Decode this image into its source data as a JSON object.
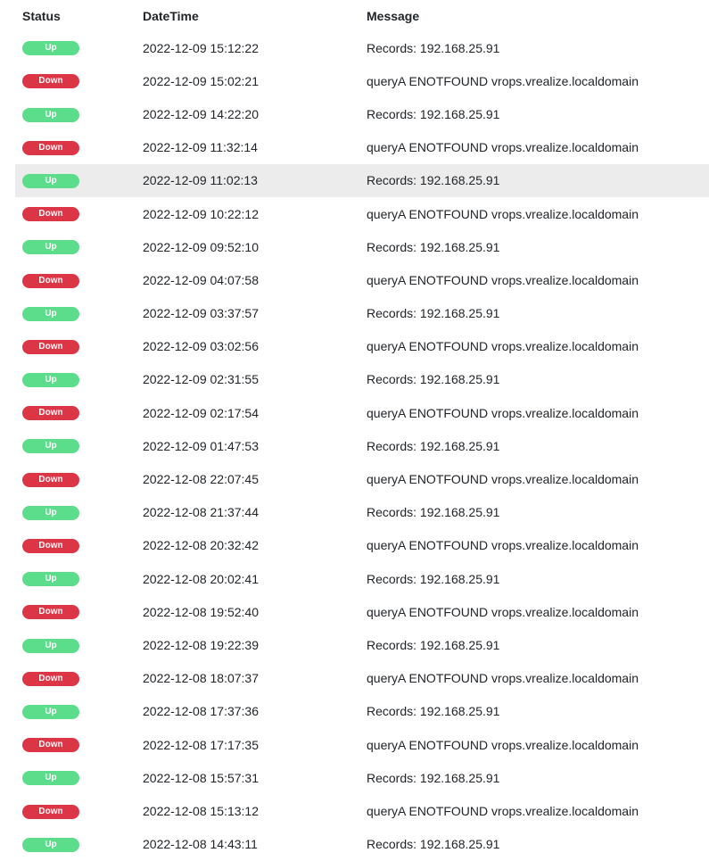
{
  "headers": {
    "status": "Status",
    "datetime": "DateTime",
    "message": "Message"
  },
  "colors": {
    "up": "#5cdd8b",
    "down": "#dc3545"
  },
  "highlighted_row": 4,
  "rows": [
    {
      "status": "Up",
      "datetime": "2022-12-09 15:12:22",
      "message": "Records: 192.168.25.91"
    },
    {
      "status": "Down",
      "datetime": "2022-12-09 15:02:21",
      "message": "queryA ENOTFOUND vrops.vrealize.localdomain"
    },
    {
      "status": "Up",
      "datetime": "2022-12-09 14:22:20",
      "message": "Records: 192.168.25.91"
    },
    {
      "status": "Down",
      "datetime": "2022-12-09 11:32:14",
      "message": "queryA ENOTFOUND vrops.vrealize.localdomain"
    },
    {
      "status": "Up",
      "datetime": "2022-12-09 11:02:13",
      "message": "Records: 192.168.25.91"
    },
    {
      "status": "Down",
      "datetime": "2022-12-09 10:22:12",
      "message": "queryA ENOTFOUND vrops.vrealize.localdomain"
    },
    {
      "status": "Up",
      "datetime": "2022-12-09 09:52:10",
      "message": "Records: 192.168.25.91"
    },
    {
      "status": "Down",
      "datetime": "2022-12-09 04:07:58",
      "message": "queryA ENOTFOUND vrops.vrealize.localdomain"
    },
    {
      "status": "Up",
      "datetime": "2022-12-09 03:37:57",
      "message": "Records: 192.168.25.91"
    },
    {
      "status": "Down",
      "datetime": "2022-12-09 03:02:56",
      "message": "queryA ENOTFOUND vrops.vrealize.localdomain"
    },
    {
      "status": "Up",
      "datetime": "2022-12-09 02:31:55",
      "message": "Records: 192.168.25.91"
    },
    {
      "status": "Down",
      "datetime": "2022-12-09 02:17:54",
      "message": "queryA ENOTFOUND vrops.vrealize.localdomain"
    },
    {
      "status": "Up",
      "datetime": "2022-12-09 01:47:53",
      "message": "Records: 192.168.25.91"
    },
    {
      "status": "Down",
      "datetime": "2022-12-08 22:07:45",
      "message": "queryA ENOTFOUND vrops.vrealize.localdomain"
    },
    {
      "status": "Up",
      "datetime": "2022-12-08 21:37:44",
      "message": "Records: 192.168.25.91"
    },
    {
      "status": "Down",
      "datetime": "2022-12-08 20:32:42",
      "message": "queryA ENOTFOUND vrops.vrealize.localdomain"
    },
    {
      "status": "Up",
      "datetime": "2022-12-08 20:02:41",
      "message": "Records: 192.168.25.91"
    },
    {
      "status": "Down",
      "datetime": "2022-12-08 19:52:40",
      "message": "queryA ENOTFOUND vrops.vrealize.localdomain"
    },
    {
      "status": "Up",
      "datetime": "2022-12-08 19:22:39",
      "message": "Records: 192.168.25.91"
    },
    {
      "status": "Down",
      "datetime": "2022-12-08 18:07:37",
      "message": "queryA ENOTFOUND vrops.vrealize.localdomain"
    },
    {
      "status": "Up",
      "datetime": "2022-12-08 17:37:36",
      "message": "Records: 192.168.25.91"
    },
    {
      "status": "Down",
      "datetime": "2022-12-08 17:17:35",
      "message": "queryA ENOTFOUND vrops.vrealize.localdomain"
    },
    {
      "status": "Up",
      "datetime": "2022-12-08 15:57:31",
      "message": "Records: 192.168.25.91"
    },
    {
      "status": "Down",
      "datetime": "2022-12-08 15:13:12",
      "message": "queryA ENOTFOUND vrops.vrealize.localdomain"
    },
    {
      "status": "Up",
      "datetime": "2022-12-08 14:43:11",
      "message": "Records: 192.168.25.91"
    }
  ]
}
